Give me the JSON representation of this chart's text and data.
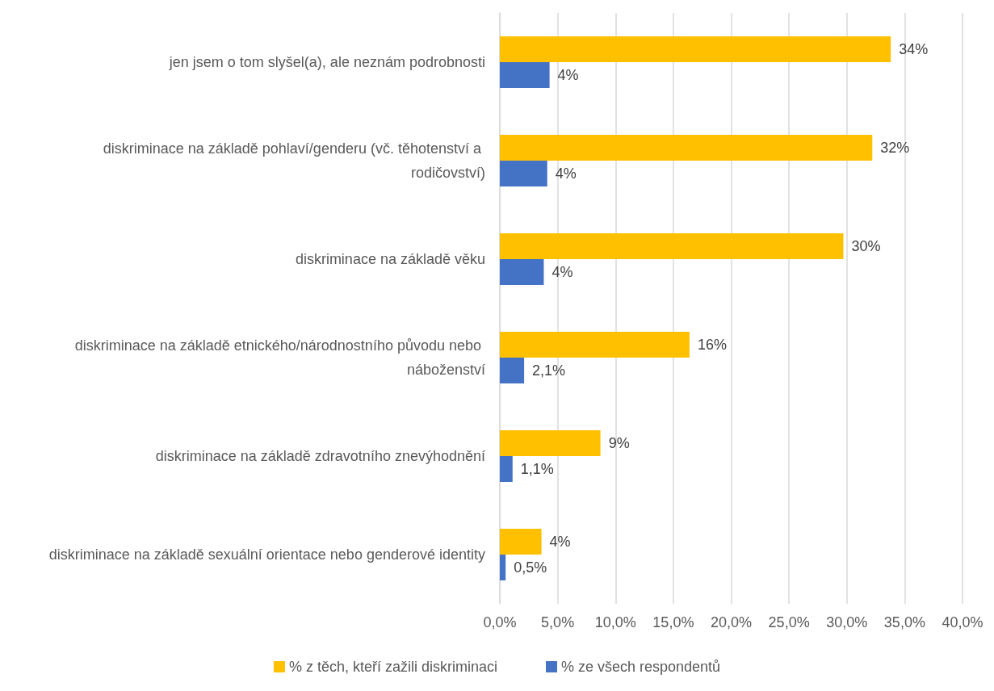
{
  "chart_data": {
    "type": "bar",
    "orientation": "horizontal",
    "categories": [
      "jen jsem o tom slyšel(a), ale neznám podrobnosti",
      "diskriminace na základě pohlaví/genderu (vč. těhotenství a rodičovství)",
      "diskriminace na základě věku",
      "diskriminace na základě etnického/národnostního původu nebo náboženství",
      "diskriminace na základě zdravotního znevýhodnění",
      "diskriminace na základě sexuální orientace nebo genderové identity"
    ],
    "series": [
      {
        "name": "% z těch, kteří zažili diskriminaci",
        "color": "#ffc000",
        "values": [
          33.8,
          32.2,
          29.7,
          16.4,
          8.7,
          3.6
        ],
        "value_labels": [
          "34%",
          "32%",
          "30%",
          "16%",
          "9%",
          "4%"
        ]
      },
      {
        "name": "% ze všech respondentů",
        "color": "#4472c4",
        "values": [
          4.3,
          4.1,
          3.8,
          2.1,
          1.1,
          0.5
        ],
        "value_labels": [
          "4%",
          "4%",
          "4%",
          "2,1%",
          "1,1%",
          "0,5%"
        ]
      }
    ],
    "xlim": [
      0,
      40
    ],
    "xticks": [
      {
        "value": 0,
        "label": "0,0%"
      },
      {
        "value": 5,
        "label": "5,0%"
      },
      {
        "value": 10,
        "label": "10,0%"
      },
      {
        "value": 15,
        "label": "15,0%"
      },
      {
        "value": 20,
        "label": "20,0%"
      },
      {
        "value": 25,
        "label": "25,0%"
      },
      {
        "value": 30,
        "label": "30,0%"
      },
      {
        "value": 35,
        "label": "35,0%"
      },
      {
        "value": 40,
        "label": "40,0%"
      }
    ],
    "grid": "x",
    "legend": "bottom"
  }
}
